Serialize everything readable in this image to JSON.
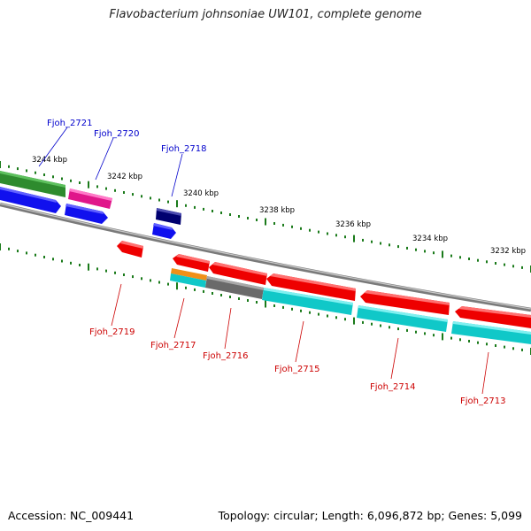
{
  "title": "Flavobacterium johnsoniae UW101, complete genome",
  "footer": {
    "accession": "Accession: NC_009441",
    "summary": "Topology: circular; Length: 6,096,872 bp; Genes: 5,099"
  },
  "colors": {
    "forward_label": "#0000cc",
    "reverse_label": "#cc0000",
    "tick": "#1a7a1a",
    "backbone": "#8a8a8a"
  },
  "scale_labels": [
    "3244 kbp",
    "3242 kbp",
    "3240 kbp",
    "3238 kbp",
    "3236 kbp",
    "3234 kbp",
    "3232 kbp"
  ],
  "genes_forward": [
    {
      "label": "Fjoh_2721"
    },
    {
      "label": "Fjoh_2720"
    },
    {
      "label": "Fjoh_2718"
    }
  ],
  "genes_reverse": [
    {
      "label": "Fjoh_2719"
    },
    {
      "label": "Fjoh_2717"
    },
    {
      "label": "Fjoh_2716"
    },
    {
      "label": "Fjoh_2715"
    },
    {
      "label": "Fjoh_2714"
    },
    {
      "label": "Fjoh_2713"
    }
  ]
}
